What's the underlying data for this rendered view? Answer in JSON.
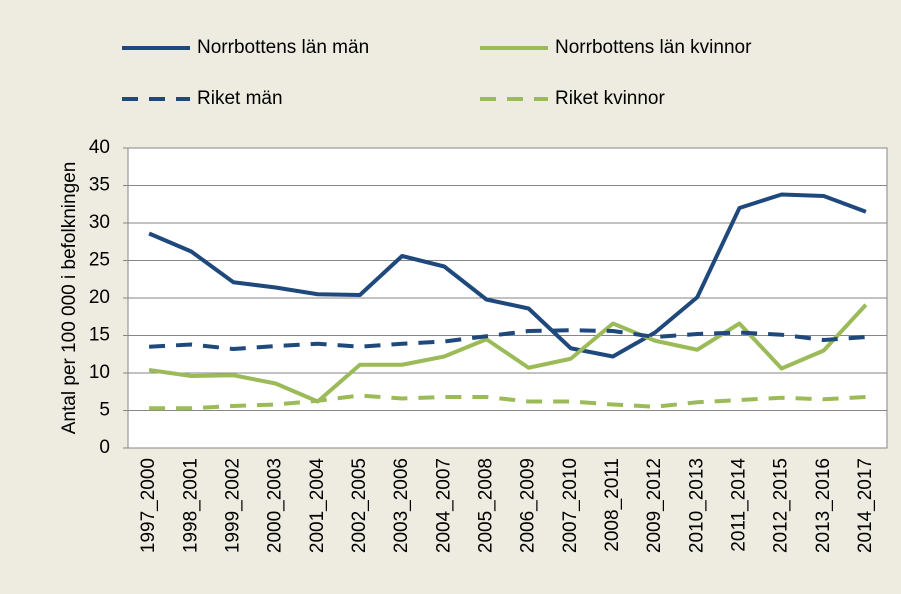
{
  "chart_data": {
    "type": "line",
    "y_label": "Antal per 100 000 i befolkningen",
    "categories": [
      "1997_2000",
      "1998_2001",
      "1999_2002",
      "2000_2003",
      "2001_2004",
      "2002_2005",
      "2003_2006",
      "2004_2007",
      "2005_2008",
      "2006_2009",
      "2007_2010",
      "2008_2011",
      "2009_2012",
      "2010_2013",
      "2011_2014",
      "2012_2015",
      "2013_2016",
      "2014_2017"
    ],
    "series": [
      {
        "name": "Norrbottens län män",
        "color": "#1f497d",
        "dashed": false,
        "values": [
          28.6,
          26.2,
          22.1,
          21.4,
          20.5,
          20.4,
          25.6,
          24.2,
          19.8,
          18.6,
          13.3,
          12.2,
          15.4,
          20.1,
          32.0,
          33.8,
          33.6,
          31.5
        ]
      },
      {
        "name": "Norrbottens län kvinnor",
        "color": "#9bbb59",
        "dashed": false,
        "values": [
          10.4,
          9.6,
          9.7,
          8.6,
          6.2,
          11.1,
          11.1,
          12.2,
          14.5,
          10.7,
          11.9,
          16.6,
          14.3,
          13.1,
          16.6,
          10.6,
          13.0,
          19.1
        ]
      },
      {
        "name": "Riket män",
        "color": "#1f497d",
        "dashed": true,
        "values": [
          13.5,
          13.8,
          13.2,
          13.6,
          13.9,
          13.5,
          13.9,
          14.2,
          14.9,
          15.6,
          15.7,
          15.6,
          14.8,
          15.2,
          15.4,
          15.1,
          14.4,
          14.8
        ]
      },
      {
        "name": "Riket kvinnor",
        "color": "#9bbb59",
        "dashed": true,
        "values": [
          5.3,
          5.3,
          5.6,
          5.8,
          6.3,
          7.0,
          6.6,
          6.8,
          6.8,
          6.2,
          6.2,
          5.8,
          5.5,
          6.1,
          6.4,
          6.7,
          6.5,
          6.8
        ]
      }
    ],
    "ylim": [
      0,
      40
    ],
    "yticks": [
      0,
      5,
      10,
      15,
      20,
      25,
      30,
      35,
      40
    ],
    "grid": true
  }
}
